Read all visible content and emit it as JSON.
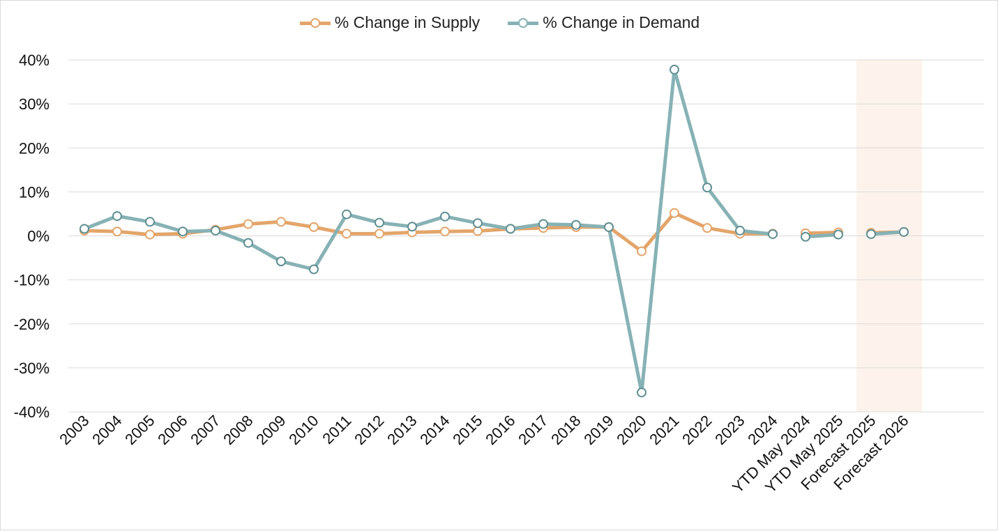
{
  "chart_data": {
    "type": "line",
    "categories": [
      "2003",
      "2004",
      "2005",
      "2006",
      "2007",
      "2008",
      "2009",
      "2010",
      "2011",
      "2012",
      "2013",
      "2014",
      "2015",
      "2016",
      "2017",
      "2018",
      "2019",
      "2020",
      "2021",
      "2022",
      "2023",
      "2024",
      "YTD May 2024",
      "YTD May 2025",
      "Forecast 2025",
      "Forecast 2026"
    ],
    "series": [
      {
        "name": "% Change in Supply",
        "color": "#e3a56a",
        "values": [
          1.2,
          1.0,
          0.3,
          0.5,
          1.4,
          2.7,
          3.2,
          2.0,
          0.5,
          0.5,
          0.8,
          1.0,
          1.1,
          1.6,
          1.8,
          2.0,
          2.0,
          -3.5,
          5.2,
          1.8,
          0.5,
          0.5,
          0.6,
          0.8,
          0.7,
          0.9
        ]
      },
      {
        "name": "% Change in Demand",
        "color": "#87b2b5",
        "values": [
          1.6,
          4.5,
          3.2,
          1.0,
          1.2,
          -1.6,
          -5.8,
          -7.6,
          4.9,
          3.0,
          2.1,
          4.4,
          2.9,
          1.6,
          2.7,
          2.5,
          2.0,
          -35.6,
          37.8,
          11.0,
          1.2,
          0.4,
          -0.2,
          0.3,
          0.4,
          0.9
        ]
      }
    ],
    "ylim": [
      -40,
      40
    ],
    "y_ticks": [
      40,
      30,
      20,
      10,
      0,
      -10,
      -20,
      -30,
      -40
    ],
    "y_tick_labels": [
      "40%",
      "30%",
      "20%",
      "10%",
      "0%",
      "-10%",
      "-20%",
      "-30%",
      "-40%"
    ],
    "groups": [
      [
        0,
        21
      ],
      [
        22,
        23
      ],
      [
        24,
        25
      ]
    ],
    "highlight_region": {
      "from": "Forecast 2025",
      "to": "Forecast 2026",
      "color": "#fdf3ec"
    },
    "grid": true,
    "legend_position": "top-center",
    "xlabel": "",
    "ylabel": "",
    "title": ""
  }
}
